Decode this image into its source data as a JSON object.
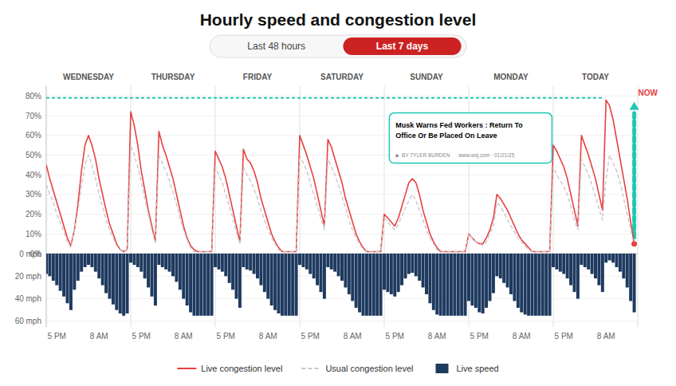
{
  "chart_data": [
    {
      "type": "line",
      "title": "Hourly speed and congestion level",
      "buttons": [
        "Last 48 hours",
        "Last 7 days"
      ],
      "days": [
        "WEDNESDAY",
        "THURSDAY",
        "FRIDAY",
        "SATURDAY",
        "SUNDAY",
        "MONDAY",
        "TODAY"
      ],
      "annotations": [
        "NOW",
        "Musk Warns Fed Workers : Return To",
        "Office Or Be Placed On Leave",
        "■  BY TYLER BURDEN      www.wsj.com · 01/21/25"
      ],
      "reference_line": {
        "value": 79,
        "color": "#1ec8b4"
      },
      "categories": [
        null,
        null,
        null,
        "5 PM",
        null,
        null,
        null,
        null,
        null,
        null,
        null,
        null,
        null,
        null,
        null,
        "8 AM",
        null,
        null,
        null,
        null,
        null,
        null,
        null,
        null,
        null,
        null,
        null,
        "5 PM",
        null,
        null,
        null,
        null,
        null,
        null,
        null,
        null,
        null,
        null,
        null,
        "8 AM",
        null,
        null,
        null,
        null,
        null,
        null,
        null,
        null,
        null,
        null,
        null,
        "5 PM",
        null,
        null,
        null,
        null,
        null,
        null,
        null,
        null,
        null,
        null,
        null,
        "8 AM",
        null,
        null,
        null,
        null,
        null,
        null,
        null,
        null,
        null,
        null,
        null,
        "5 PM",
        null,
        null,
        null,
        null,
        null,
        null,
        null,
        null,
        null,
        null,
        null,
        "8 AM",
        null,
        null,
        null,
        null,
        null,
        null,
        null,
        null,
        null,
        null,
        null,
        "5 PM",
        null,
        null,
        null,
        null,
        null,
        null,
        null,
        null,
        null,
        null,
        null,
        "8 AM",
        null,
        null,
        null,
        null,
        null,
        null,
        null,
        null,
        null,
        null,
        null,
        "5 PM",
        null,
        null,
        null,
        null,
        null,
        null,
        null,
        null,
        null,
        null,
        null,
        "8 AM",
        null,
        null,
        null,
        null,
        null,
        null,
        null,
        null,
        null,
        null,
        null,
        "5 PM",
        null,
        null,
        null,
        null,
        null,
        null,
        null,
        null,
        null,
        null,
        null,
        "8 AM",
        null,
        null,
        null,
        null,
        null,
        null,
        null,
        null
      ],
      "tick_labels": "y",
      "series": [
        {
          "name": "Live congestion level",
          "color": "#e84040",
          "line_style": "solid",
          "values": [
            45,
            38,
            32,
            26,
            20,
            14,
            8,
            4,
            12,
            25,
            42,
            55,
            60,
            55,
            48,
            38,
            30,
            22,
            15,
            10,
            5,
            2,
            1,
            2,
            72,
            65,
            55,
            42,
            32,
            22,
            14,
            6,
            62,
            55,
            50,
            44,
            38,
            30,
            22,
            14,
            8,
            4,
            2,
            1,
            1,
            1,
            1,
            1,
            52,
            48,
            44,
            38,
            30,
            22,
            14,
            6,
            53,
            48,
            46,
            42,
            36,
            28,
            22,
            16,
            10,
            6,
            3,
            1,
            1,
            1,
            1,
            1,
            60,
            55,
            50,
            44,
            38,
            30,
            22,
            14,
            58,
            54,
            48,
            42,
            36,
            28,
            22,
            16,
            10,
            6,
            3,
            1,
            1,
            1,
            1,
            1,
            20,
            18,
            16,
            14,
            18,
            24,
            30,
            36,
            38,
            36,
            30,
            22,
            16,
            10,
            6,
            3,
            1,
            1,
            1,
            1,
            1,
            1,
            1,
            1,
            10,
            8,
            6,
            5,
            5,
            8,
            12,
            18,
            30,
            28,
            25,
            22,
            18,
            14,
            10,
            7,
            5,
            3,
            1,
            1,
            1,
            1,
            1,
            1,
            55,
            52,
            48,
            44,
            38,
            30,
            22,
            14,
            60,
            55,
            50,
            44,
            38,
            30,
            22,
            78,
            75,
            68,
            58,
            48,
            38,
            28,
            16,
            5
          ]
        },
        {
          "name": "Usual congestion level",
          "color": "#c8c8c8",
          "line_style": "dashed",
          "values": [
            35,
            30,
            26,
            20,
            16,
            11,
            6,
            3,
            12,
            22,
            34,
            45,
            50,
            45,
            38,
            30,
            24,
            17,
            12,
            8,
            4,
            2,
            1,
            2,
            55,
            50,
            44,
            36,
            28,
            20,
            12,
            6,
            50,
            46,
            42,
            37,
            31,
            25,
            18,
            12,
            7,
            3,
            1,
            1,
            1,
            1,
            1,
            1,
            44,
            40,
            36,
            30,
            24,
            18,
            11,
            5,
            44,
            40,
            37,
            33,
            28,
            22,
            17,
            12,
            8,
            5,
            2,
            1,
            1,
            1,
            1,
            1,
            50,
            46,
            42,
            36,
            30,
            24,
            18,
            12,
            48,
            44,
            40,
            35,
            29,
            23,
            17,
            12,
            8,
            5,
            2,
            1,
            1,
            1,
            1,
            1,
            18,
            16,
            14,
            12,
            15,
            19,
            23,
            27,
            30,
            27,
            22,
            17,
            12,
            8,
            5,
            2,
            1,
            1,
            1,
            1,
            1,
            1,
            1,
            1,
            10,
            8,
            6,
            5,
            4,
            6,
            10,
            14,
            26,
            24,
            21,
            17,
            14,
            11,
            8,
            6,
            4,
            2,
            1,
            1,
            1,
            1,
            1,
            1,
            44,
            40,
            37,
            34,
            30,
            24,
            17,
            12,
            48,
            44,
            40,
            35,
            29,
            23,
            17,
            38,
            50,
            46,
            42,
            36,
            28,
            20,
            12,
            4
          ]
        }
      ],
      "ylim": [
        0,
        85
      ],
      "yticks": [
        {
          "value": 0,
          "label": "0%"
        },
        {
          "value": 10,
          "label": "10%"
        },
        {
          "value": 20,
          "label": "20%"
        },
        {
          "value": 30,
          "label": "30%"
        },
        {
          "value": 40,
          "label": "40%"
        },
        {
          "value": 50,
          "label": "50%"
        },
        {
          "value": 60,
          "label": "60%"
        },
        {
          "value": 70,
          "label": "70%"
        },
        {
          "value": 80,
          "label": "80%"
        }
      ],
      "grid": true,
      "legend": "bottom"
    },
    {
      "type": "bar",
      "categories": [
        null,
        null,
        null,
        "5 PM",
        null,
        null,
        null,
        null,
        null,
        null,
        null,
        null,
        null,
        null,
        null,
        "8 AM",
        null,
        null,
        null,
        null,
        null,
        null,
        null,
        null,
        null,
        null,
        null,
        "5 PM",
        null,
        null,
        null,
        null,
        null,
        null,
        null,
        null,
        null,
        null,
        null,
        "8 AM",
        null,
        null,
        null,
        null,
        null,
        null,
        null,
        null,
        null,
        null,
        null,
        "5 PM",
        null,
        null,
        null,
        null,
        null,
        null,
        null,
        null,
        null,
        null,
        null,
        "8 AM",
        null,
        null,
        null,
        null,
        null,
        null,
        null,
        null,
        null,
        null,
        null,
        "5 PM",
        null,
        null,
        null,
        null,
        null,
        null,
        null,
        null,
        null,
        null,
        null,
        "8 AM",
        null,
        null,
        null,
        null,
        null,
        null,
        null,
        null,
        null,
        null,
        null,
        "5 PM",
        null,
        null,
        null,
        null,
        null,
        null,
        null,
        null,
        null,
        null,
        null,
        "8 AM",
        null,
        null,
        null,
        null,
        null,
        null,
        null,
        null,
        null,
        null,
        null,
        "5 PM",
        null,
        null,
        null,
        null,
        null,
        null,
        null,
        null,
        null,
        null,
        null,
        "8 AM",
        null,
        null,
        null,
        null,
        null,
        null,
        null,
        null,
        null,
        null,
        null,
        "5 PM",
        null,
        null,
        null,
        null,
        null,
        null,
        null,
        null,
        null,
        null,
        null,
        "8 AM",
        null,
        null,
        null,
        null,
        null,
        null,
        null,
        null
      ],
      "series": [
        {
          "name": "Live speed",
          "color": "#1e3a5f",
          "values": [
            18,
            20,
            24,
            28,
            33,
            38,
            44,
            50,
            32,
            24,
            16,
            12,
            10,
            12,
            16,
            22,
            28,
            35,
            40,
            45,
            50,
            53,
            55,
            53,
            8,
            10,
            12,
            16,
            22,
            30,
            38,
            46,
            10,
            12,
            14,
            16,
            20,
            25,
            32,
            40,
            46,
            52,
            55,
            55,
            55,
            55,
            55,
            55,
            12,
            14,
            16,
            20,
            26,
            32,
            40,
            48,
            12,
            14,
            15,
            18,
            22,
            28,
            34,
            40,
            46,
            50,
            53,
            55,
            55,
            55,
            55,
            55,
            10,
            12,
            14,
            18,
            22,
            28,
            34,
            40,
            12,
            14,
            16,
            20,
            24,
            30,
            36,
            42,
            48,
            52,
            55,
            55,
            55,
            55,
            55,
            55,
            32,
            34,
            36,
            38,
            34,
            28,
            22,
            18,
            17,
            20,
            24,
            30,
            36,
            44,
            50,
            54,
            55,
            55,
            55,
            55,
            55,
            55,
            55,
            55,
            42,
            46,
            48,
            52,
            53,
            48,
            42,
            35,
            20,
            22,
            26,
            30,
            36,
            42,
            48,
            52,
            54,
            55,
            55,
            55,
            55,
            55,
            55,
            55,
            12,
            14,
            16,
            18,
            22,
            28,
            34,
            40,
            10,
            12,
            14,
            18,
            22,
            28,
            34,
            8,
            6,
            8,
            12,
            16,
            22,
            30,
            42,
            52
          ]
        }
      ],
      "ylim": [
        0,
        65
      ],
      "yticks": [
        {
          "value": 0,
          "label": "0 mph"
        },
        {
          "value": 20,
          "label": "20 mph"
        },
        {
          "value": 40,
          "label": "40 mph"
        },
        {
          "value": 60,
          "label": "60 mph"
        }
      ],
      "grid": true
    }
  ]
}
